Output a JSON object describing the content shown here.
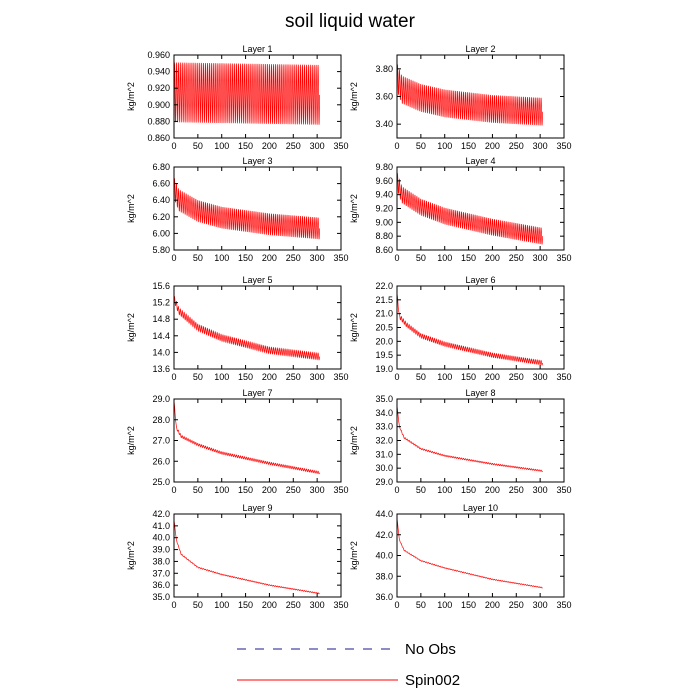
{
  "figure": {
    "title": "soil liquid water"
  },
  "legend": {
    "entries": [
      {
        "label": "No Obs",
        "style": "dashed",
        "color": "#1a1a8c"
      },
      {
        "label": "Spin002",
        "style": "solid",
        "color": "#ff0000"
      }
    ]
  },
  "chart_data": [
    {
      "type": "line",
      "title": "Layer 1",
      "ylabel": "kg/m^2",
      "xlim": [
        0,
        350
      ],
      "ylim": [
        0.86,
        0.96
      ],
      "x_ticks": [
        "0",
        "50",
        "100",
        "150",
        "200",
        "250",
        "300",
        "350"
      ],
      "y_ticks": [
        "0.860",
        "0.880",
        "0.900",
        "0.920",
        "0.940",
        "0.960"
      ],
      "series": [
        {
          "color": "#ff0000",
          "x_range": [
            0,
            305
          ],
          "trend": [
            [
              0,
              0.915
            ],
            [
              305,
              0.912
            ]
          ],
          "oscillation_amp": 0.036,
          "cycles": 75
        }
      ]
    },
    {
      "type": "line",
      "title": "Layer 2",
      "ylabel": "kg/m^2",
      "xlim": [
        0,
        350
      ],
      "ylim": [
        3.3,
        3.9
      ],
      "x_ticks": [
        "0",
        "50",
        "100",
        "150",
        "200",
        "250",
        "300",
        "350"
      ],
      "y_ticks": [
        "3.40",
        "3.60",
        "3.80"
      ],
      "series": [
        {
          "color": "#ff0000",
          "x_range": [
            0,
            305
          ],
          "trend": [
            [
              0,
              3.74
            ],
            [
              10,
              3.65
            ],
            [
              50,
              3.59
            ],
            [
              100,
              3.55
            ],
            [
              200,
              3.51
            ],
            [
              305,
              3.49
            ]
          ],
          "oscillation_amp": 0.1,
          "cycles": 75
        }
      ]
    },
    {
      "type": "line",
      "title": "Layer 3",
      "ylabel": "kg/m^2",
      "xlim": [
        0,
        350
      ],
      "ylim": [
        5.8,
        6.8
      ],
      "x_ticks": [
        "0",
        "50",
        "100",
        "150",
        "200",
        "250",
        "300",
        "350"
      ],
      "y_ticks": [
        "5.80",
        "6.00",
        "6.20",
        "6.40",
        "6.60",
        "6.80"
      ],
      "series": [
        {
          "color": "#ff0000",
          "x_range": [
            0,
            305
          ],
          "trend": [
            [
              0,
              6.55
            ],
            [
              10,
              6.4
            ],
            [
              50,
              6.27
            ],
            [
              100,
              6.19
            ],
            [
              200,
              6.11
            ],
            [
              305,
              6.06
            ]
          ],
          "oscillation_amp": 0.13,
          "cycles": 75
        }
      ]
    },
    {
      "type": "line",
      "title": "Layer 4",
      "ylabel": "kg/m^2",
      "xlim": [
        0,
        350
      ],
      "ylim": [
        8.6,
        9.8
      ],
      "x_ticks": [
        "0",
        "50",
        "100",
        "150",
        "200",
        "250",
        "300",
        "350"
      ],
      "y_ticks": [
        "8.60",
        "8.80",
        "9.00",
        "9.20",
        "9.40",
        "9.60",
        "9.80"
      ],
      "series": [
        {
          "color": "#ff0000",
          "x_range": [
            0,
            305
          ],
          "trend": [
            [
              0,
              9.6
            ],
            [
              10,
              9.4
            ],
            [
              50,
              9.22
            ],
            [
              100,
              9.09
            ],
            [
              200,
              8.93
            ],
            [
              305,
              8.8
            ]
          ],
          "oscillation_amp": 0.12,
          "cycles": 75
        }
      ]
    },
    {
      "type": "line",
      "title": "Layer 5",
      "ylabel": "kg/m^2",
      "xlim": [
        0,
        350
      ],
      "ylim": [
        13.6,
        15.6
      ],
      "x_ticks": [
        "0",
        "50",
        "100",
        "150",
        "200",
        "250",
        "300",
        "350"
      ],
      "y_ticks": [
        "13.6",
        "14.0",
        "14.4",
        "14.8",
        "15.2",
        "15.6"
      ],
      "series": [
        {
          "color": "#ff0000",
          "x_range": [
            0,
            305
          ],
          "trend": [
            [
              0,
              15.3
            ],
            [
              10,
              15.0
            ],
            [
              50,
              14.6
            ],
            [
              100,
              14.35
            ],
            [
              200,
              14.05
            ],
            [
              305,
              13.9
            ]
          ],
          "oscillation_amp": 0.08,
          "cycles": 75
        }
      ]
    },
    {
      "type": "line",
      "title": "Layer 6",
      "ylabel": "kg/m^2",
      "xlim": [
        0,
        350
      ],
      "ylim": [
        19.0,
        22.0
      ],
      "x_ticks": [
        "0",
        "50",
        "100",
        "150",
        "200",
        "250",
        "300",
        "350"
      ],
      "y_ticks": [
        "19.0",
        "19.5",
        "20.0",
        "20.5",
        "21.0",
        "21.5",
        "22.0"
      ],
      "series": [
        {
          "color": "#ff0000",
          "x_range": [
            0,
            305
          ],
          "trend": [
            [
              0,
              21.7
            ],
            [
              5,
              20.9
            ],
            [
              20,
              20.6
            ],
            [
              50,
              20.2
            ],
            [
              100,
              19.9
            ],
            [
              200,
              19.5
            ],
            [
              305,
              19.22
            ]
          ],
          "oscillation_amp": 0.08,
          "cycles": 75
        }
      ]
    },
    {
      "type": "line",
      "title": "Layer 7",
      "ylabel": "kg/m^2",
      "xlim": [
        0,
        350
      ],
      "ylim": [
        25.0,
        29.0
      ],
      "x_ticks": [
        "0",
        "50",
        "100",
        "150",
        "200",
        "250",
        "300",
        "350"
      ],
      "y_ticks": [
        "25.0",
        "26.0",
        "27.0",
        "28.0",
        "29.0"
      ],
      "series": [
        {
          "color": "#ff0000",
          "x_range": [
            0,
            305
          ],
          "trend": [
            [
              0,
              28.9
            ],
            [
              5,
              27.6
            ],
            [
              15,
              27.2
            ],
            [
              50,
              26.8
            ],
            [
              100,
              26.4
            ],
            [
              200,
              25.9
            ],
            [
              305,
              25.45
            ]
          ],
          "oscillation_amp": 0.06,
          "cycles": 75
        }
      ]
    },
    {
      "type": "line",
      "title": "Layer 8",
      "ylabel": "kg/m^2",
      "xlim": [
        0,
        350
      ],
      "ylim": [
        29.0,
        35.0
      ],
      "x_ticks": [
        "0",
        "50",
        "100",
        "150",
        "200",
        "250",
        "300",
        "350"
      ],
      "y_ticks": [
        "29.0",
        "30.0",
        "31.0",
        "32.0",
        "33.0",
        "34.0",
        "35.0"
      ],
      "series": [
        {
          "color": "#ff0000",
          "x_range": [
            0,
            305
          ],
          "trend": [
            [
              0,
              34.5
            ],
            [
              5,
              33.0
            ],
            [
              15,
              32.2
            ],
            [
              50,
              31.4
            ],
            [
              100,
              30.9
            ],
            [
              200,
              30.3
            ],
            [
              305,
              29.8
            ]
          ],
          "oscillation_amp": 0.05,
          "cycles": 75
        }
      ]
    },
    {
      "type": "line",
      "title": "Layer 9",
      "ylabel": "kg/m^2",
      "xlim": [
        0,
        350
      ],
      "ylim": [
        35.0,
        42.0
      ],
      "x_ticks": [
        "0",
        "50",
        "100",
        "150",
        "200",
        "250",
        "300",
        "350"
      ],
      "y_ticks": [
        "35.0",
        "36.0",
        "37.0",
        "38.0",
        "39.0",
        "40.0",
        "41.0",
        "42.0"
      ],
      "series": [
        {
          "color": "#ff0000",
          "x_range": [
            0,
            305
          ],
          "trend": [
            [
              0,
              41.5
            ],
            [
              5,
              39.8
            ],
            [
              15,
              38.6
            ],
            [
              50,
              37.5
            ],
            [
              100,
              36.9
            ],
            [
              200,
              36.0
            ],
            [
              305,
              35.3
            ]
          ],
          "oscillation_amp": 0.04,
          "cycles": 75
        }
      ]
    },
    {
      "type": "line",
      "title": "Layer 10",
      "ylabel": "kg/m^2",
      "xlim": [
        0,
        350
      ],
      "ylim": [
        36.0,
        44.0
      ],
      "x_ticks": [
        "0",
        "50",
        "100",
        "150",
        "200",
        "250",
        "300",
        "350"
      ],
      "y_ticks": [
        "36.0",
        "38.0",
        "40.0",
        "42.0",
        "44.0"
      ],
      "series": [
        {
          "color": "#ff0000",
          "x_range": [
            0,
            305
          ],
          "trend": [
            [
              0,
              43.6
            ],
            [
              5,
              41.5
            ],
            [
              15,
              40.5
            ],
            [
              50,
              39.5
            ],
            [
              100,
              38.8
            ],
            [
              200,
              37.7
            ],
            [
              305,
              36.9
            ]
          ],
          "oscillation_amp": 0.04,
          "cycles": 75
        }
      ]
    }
  ]
}
